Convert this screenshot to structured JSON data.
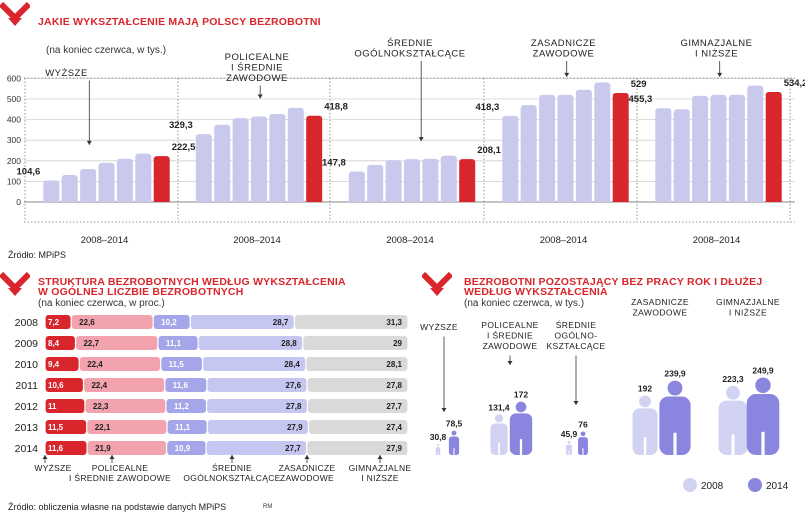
{
  "section1": {
    "title": "JAKIE WYKSZTAŁCENIE MAJĄ POLSCY BEZROBOTNI",
    "subtitle": "(na koniec czerwca, w tys.)",
    "source": "Źródło: MPiPS"
  },
  "section2": {
    "title_line1": "STRUKTURA BEZROBOTNYCH WEDŁUG WYKSZTAŁCENIA",
    "title_line2": "W OGÓLNEJ LICZBIE BEZROBOTNYCH",
    "subtitle": "(na koniec czerwca, w proc.)",
    "source": "Źródło: obliczenia własne na podstawie danych MPiPS",
    "author_initials": "RM"
  },
  "section3": {
    "title_line1": "BEZROBOTNI POZOSTAJĄCY BEZ PRACY ROK I DŁUŻEJ",
    "title_line2": "WEDŁUG WYKSZTAŁCENIA",
    "subtitle": "(na koniec czerwca, w tys.)"
  },
  "colors": {
    "accent_red": "#d8262c",
    "bar_light": "#c9c9ee",
    "pink": "#f2a3ad",
    "lavender": "#c6c7f0",
    "grey": "#d9d9d9",
    "person_2008": "#d2d3f3",
    "person_2014": "#8a86df"
  },
  "chart_data": [
    {
      "type": "bar",
      "title": "JAKIE WYKSZTAŁCENIE MAJĄ POLSCY BEZROBOTNI",
      "subtitle": "(na koniec czerwca, w tys.)",
      "ylabel": "",
      "yticks": [
        "0",
        "100",
        "200",
        "300",
        "400",
        "500",
        "600"
      ],
      "ylim": [
        0,
        600
      ],
      "categories": [
        "2008",
        "2009",
        "2010",
        "2011",
        "2012",
        "2013",
        "2014"
      ],
      "series": [
        {
          "name": "WYŻSZE",
          "label_lines": [
            "WYŻSZE"
          ],
          "values": [
            104.6,
            131,
            160,
            190,
            210,
            235,
            222.5
          ],
          "labeled": [
            "104,6",
            "222,5"
          ],
          "period": "2008–2014"
        },
        {
          "name": "POLICEALNE I ŚREDNIE ZAWODOWE",
          "label_lines": [
            "POLICEALNE",
            "I ŚREDNIE",
            "ZAWODOWE"
          ],
          "values": [
            329.3,
            375,
            407,
            415,
            427,
            457,
            418.8
          ],
          "labeled": [
            "329,3",
            "418,8"
          ],
          "period": "2008–2014"
        },
        {
          "name": "ŚREDNIE OGÓLNOKSZTAŁCĄCE",
          "label_lines": [
            "ŚREDNIE",
            "OGÓLNOKSZTAŁCĄCE"
          ],
          "values": [
            147.8,
            180,
            203,
            208,
            210,
            225,
            208.1
          ],
          "labeled": [
            "147,8",
            "208,1"
          ],
          "period": "2008–2014"
        },
        {
          "name": "ZASADNICZE ZAWODOWE",
          "label_lines": [
            "ZASADNICZE",
            "ZAWODOWE"
          ],
          "values": [
            418.3,
            470,
            520,
            520,
            545,
            580,
            529
          ],
          "labeled": [
            "418,3",
            "529"
          ],
          "period": "2008–2014"
        },
        {
          "name": "GIMNAZJALNE I NIŻSZE",
          "label_lines": [
            "GIMNAZJALNE",
            "I NIŻSZE"
          ],
          "values": [
            455.3,
            450,
            515,
            520,
            520,
            565,
            534.2
          ],
          "labeled": [
            "455,3",
            "534,2"
          ],
          "period": "2008–2014"
        }
      ]
    },
    {
      "type": "bar",
      "orientation": "horizontal-stacked-100",
      "title": "STRUKTURA BEZROBOTNYCH WEDŁUG WYKSZTAŁCENIA W OGÓLNEJ LICZBIE BEZROBOTNYCH",
      "subtitle": "(na koniec czerwca, w proc.)",
      "categories": [
        "2008",
        "2009",
        "2010",
        "2011",
        "2012",
        "2013",
        "2014"
      ],
      "series": [
        {
          "name": "WYŻSZE",
          "label_lines": [
            "WYŻSZE"
          ],
          "values": [
            "7,2",
            "8,4",
            "9,4",
            "10,6",
            "11",
            "11,5",
            "11,6"
          ]
        },
        {
          "name": "POLICEALNE I ŚREDNIE ZAWODOWE",
          "label_lines": [
            "POLICEALNE",
            "I ŚREDNIE ZAWODOWE"
          ],
          "values": [
            "22,6",
            "22,7",
            "22,4",
            "22,4",
            "22,3",
            "22,1",
            "21,9"
          ]
        },
        {
          "name": "ŚREDNIE OGÓLNOKSZTAŁCĄCE",
          "label_lines": [
            "ŚREDNIE",
            "OGÓLNOKSZTAŁCĄCE"
          ],
          "values": [
            "10,2",
            "11,1",
            "11,5",
            "11,6",
            "11,2",
            "11,1",
            "10,9"
          ]
        },
        {
          "name": "ZASADNICZE ZAWODOWE",
          "label_lines": [
            "ZASADNICZE",
            "ZAWODOWE"
          ],
          "values": [
            "28,7",
            "28,8",
            "28,4",
            "27,6",
            "27,8",
            "27,9",
            "27,7"
          ]
        },
        {
          "name": "GIMNAZJALNE I NIŻSZE",
          "label_lines": [
            "GIMNAZJALNE",
            "I NIŻSZE"
          ],
          "values": [
            "31,3",
            "29",
            "28,1",
            "27,8",
            "27,7",
            "27,4",
            "27,9"
          ]
        }
      ]
    },
    {
      "type": "bar",
      "orientation": "pictogram",
      "title": "BEZROBOTNI POZOSTAJĄCY BEZ PRACY ROK I DŁUŻEJ WEDŁUG WYKSZTAŁCENIA",
      "subtitle": "(na koniec czerwca, w tys.)",
      "legend": [
        "2008",
        "2014"
      ],
      "groups": [
        {
          "name": "WYŻSZE",
          "label_lines": [
            "WYŻSZE"
          ],
          "v2008": 30.8,
          "v2014": 78.5,
          "l2008": "30,8",
          "l2014": "78,5"
        },
        {
          "name": "POLICEALNE I ŚREDNIE ZAWODOWE",
          "label_lines": [
            "POLICEALNE",
            "I ŚREDNIE",
            "ZAWODOWE"
          ],
          "v2008": 131.4,
          "v2014": 172,
          "l2008": "131,4",
          "l2014": "172"
        },
        {
          "name": "ŚREDNIE OGÓLNOKSZTAŁCĄCE",
          "label_lines": [
            "ŚREDNIE",
            "OGÓLNO-",
            "KSZTAŁCĄCE"
          ],
          "v2008": 45.9,
          "v2014": 76,
          "l2008": "45,9",
          "l2014": "76"
        },
        {
          "name": "ZASADNICZE ZAWODOWE",
          "label_lines": [
            "ZASADNICZE",
            "ZAWODOWE"
          ],
          "v2008": 192,
          "v2014": 239.9,
          "l2008": "192",
          "l2014": "239,9"
        },
        {
          "name": "GIMNAZJALNE I NIŻSZE",
          "label_lines": [
            "GIMNAZJALNE",
            "I NIŻSZE"
          ],
          "v2008": 223.3,
          "v2014": 249.9,
          "l2008": "223,3",
          "l2014": "249,9"
        }
      ]
    }
  ]
}
